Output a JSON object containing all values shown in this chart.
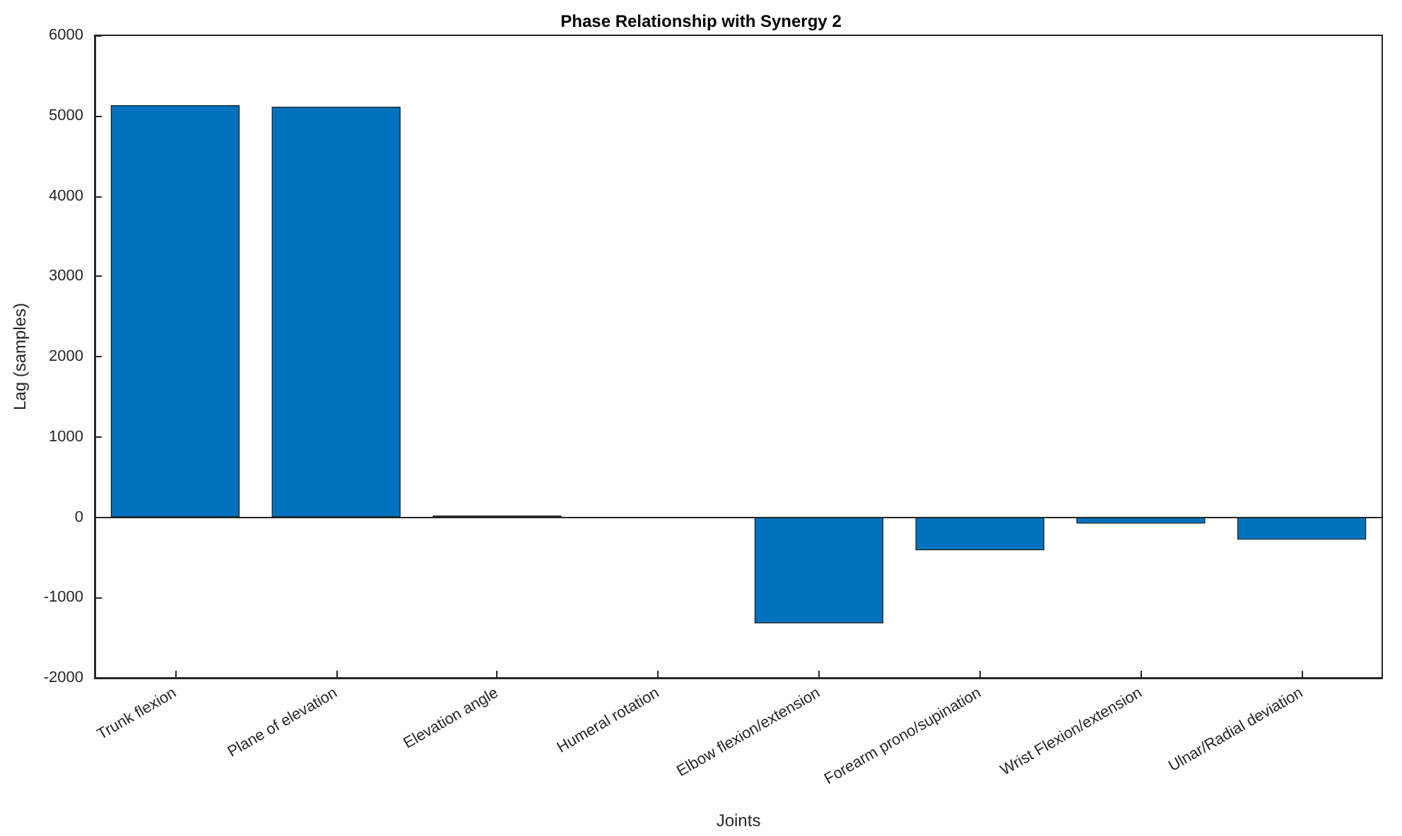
{
  "chart_data": {
    "type": "bar",
    "title": "Phase Relationship with Synergy 2",
    "xlabel": "Joints",
    "ylabel": "Lag (samples)",
    "categories": [
      "Trunk flexion",
      "Plane of elevation",
      "Elevation angle",
      "Humeral rotation",
      "Elbow flexion/extension",
      "Forearm prono/supination",
      "Wrist Flexion/extension",
      "Ulnar/Radial deviation"
    ],
    "values": [
      5130,
      5110,
      20,
      0,
      -1320,
      -410,
      -80,
      -280
    ],
    "color": "#0072bd",
    "ylim": [
      -2000,
      6000
    ],
    "yticks": [
      -2000,
      -1000,
      0,
      1000,
      2000,
      3000,
      4000,
      5000,
      6000
    ],
    "ref_lines": [
      {
        "axis": "y",
        "value": 0,
        "color": "#262626"
      }
    ],
    "grid": false
  }
}
